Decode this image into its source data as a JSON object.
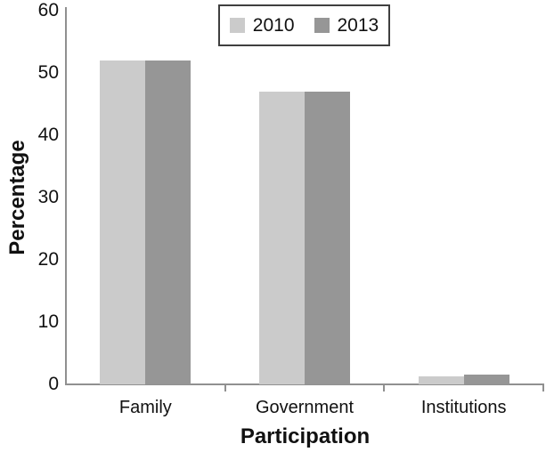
{
  "chart_data": {
    "type": "bar",
    "title": "",
    "categories": [
      "Family",
      "Government",
      "Institutions"
    ],
    "series": [
      {
        "name": "2010",
        "color": "#cbcbcb",
        "values": [
          52,
          47,
          1.3
        ]
      },
      {
        "name": "2013",
        "color": "#969696",
        "values": [
          52,
          47,
          1.6
        ]
      }
    ],
    "xlabel": "Participation",
    "ylabel": "Percentage",
    "ylim": [
      0,
      60
    ],
    "yticks": [
      0,
      10,
      20,
      30,
      40,
      50,
      60
    ],
    "grid": false,
    "legend_position": "top-center"
  },
  "colors": {
    "background": "#ffffff",
    "axis": "#909090",
    "text": "#111111",
    "legend_border": "#3f3f3f",
    "bar_2010": "#cbcbcb",
    "bar_2013": "#969696"
  }
}
